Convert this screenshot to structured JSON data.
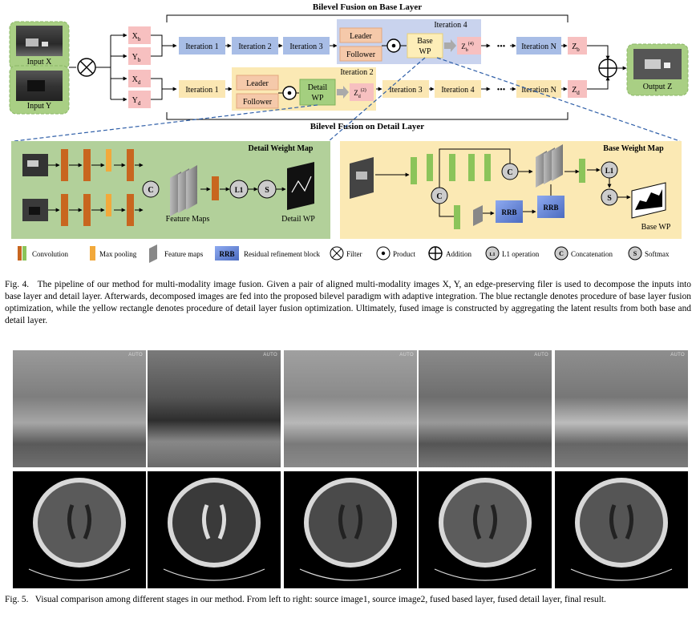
{
  "fig4": {
    "base_title": "Bilevel Fusion on Base Layer",
    "detail_title": "Bilevel Fusion on Detail Layer",
    "input_x": "Input X",
    "input_y": "Input Y",
    "output_z": "Output Z",
    "xb": "X",
    "xb_sub": "b",
    "yb": "Y",
    "yb_sub": "b",
    "xd": "X",
    "xd_sub": "d",
    "yd": "Y",
    "yd_sub": "d",
    "it1": "Iteration 1",
    "it2": "Iteration 2",
    "it3": "Iteration 3",
    "it4": "Iteration 4",
    "itN": "Iteration N",
    "leader": "Leader",
    "follower": "Follower",
    "base": "Base",
    "wp": "WP",
    "detail": "Detail",
    "zb": "Z",
    "zb_sub": "b",
    "zb_sup": "(4)",
    "zd": "Z",
    "zd_sub": "d",
    "zd_sup": "(2)",
    "zbf": "Z",
    "zbf_sub": "b",
    "zdf": "Z",
    "zdf_sub": "d",
    "dots": "•••",
    "detail_map_title": "Detail Weight Map",
    "base_map_title": "Base Weight Map",
    "feature_maps": "Feature Maps",
    "detail_wp": "Detail WP",
    "base_wp": "Base WP",
    "c": "C",
    "s": "S",
    "l1": "L1",
    "rrb": "RRB",
    "legend": {
      "convolution": "Convolution",
      "max_pooling": "Max pooling",
      "feature_maps": "Feature maps",
      "rrb": "RRB",
      "rrb_label": "Residual refinement block",
      "filter": "Filter",
      "product": "Product",
      "addition": "Addition",
      "l1_label": "L1 operation",
      "concat_label": "Concatenation",
      "softmax_label": "Softmax"
    },
    "colors": {
      "blue_panel": "#c9d3ee",
      "yellow_panel": "#fbe9b4",
      "green_panel": "#b2d09a",
      "iter_blue": "#a8bde6",
      "iter_yellow": "#fbe7b3",
      "pink": "#f7c0c0",
      "leader": "#f5c9aa",
      "conv_orange": "#c8661f",
      "conv_green": "#8bc45a",
      "pool": "#f2a93b",
      "rrb": "#6f8fd6"
    }
  },
  "fig4_caption": {
    "label": "Fig. 4.",
    "text": "The pipeline of our method for multi-modality image fusion. Given a pair of aligned multi-modality images X, Y, an edge-preserving filer is used to decompose the inputs into base layer and detail layer. Afterwards, decomposed images are fed into the proposed bilevel paradigm with adaptive integration. The blue rectangle denotes procedure of base layer fusion optimization, while the yellow rectangle denotes procedure of detail layer fusion optimization. Ultimately, fused image is constructed by aggregating the latent results from both base and detail layer."
  },
  "fig5": {
    "auto_label": "AUTO"
  },
  "fig5_caption": {
    "label": "Fig. 5.",
    "text": "Visual comparison among different stages in our method. From left to right: source image1, source image2, fused based layer, fused detail layer, final result."
  }
}
